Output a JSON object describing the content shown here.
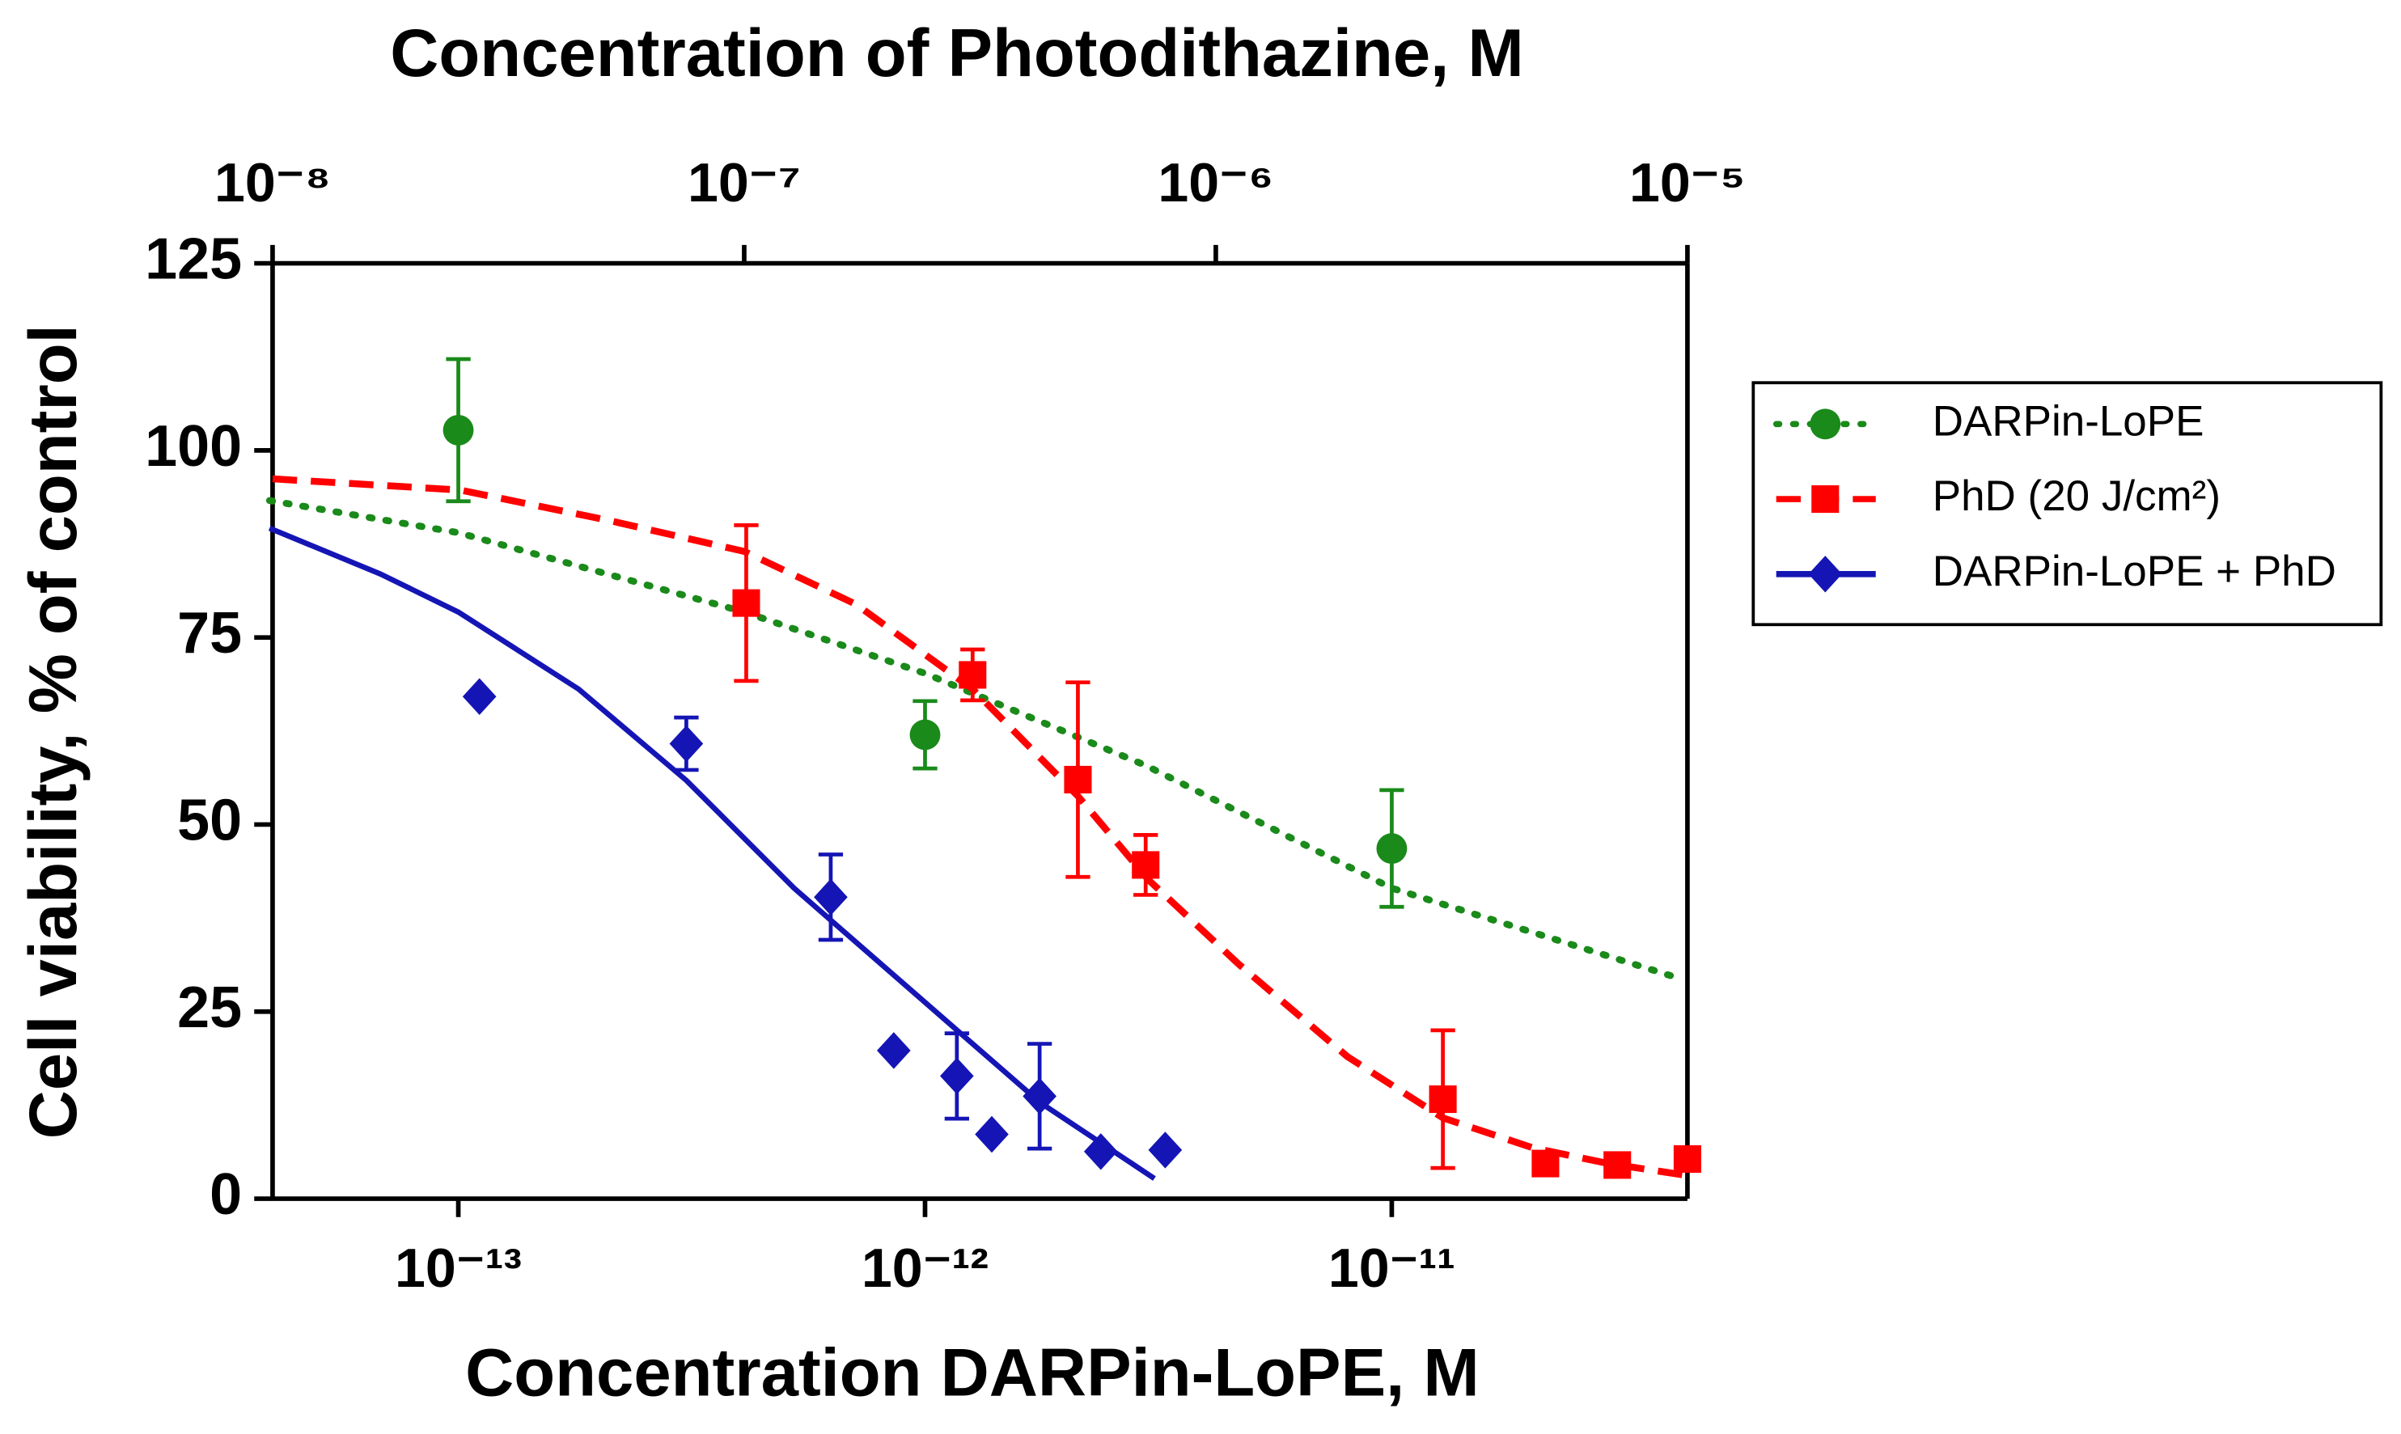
{
  "chart_data": {
    "type": "scatter",
    "title": "Concentration of Photodithazine, M",
    "x_label": "Concentration DARPin-LoPE, M",
    "y_label": "Cell viability, % of control",
    "x_scale": "log",
    "x2_scale": "log",
    "xlim": [
      4e-14,
      4.3e-11
    ],
    "xticks": [
      {
        "value": 1e-13,
        "label": "10⁻¹³"
      },
      {
        "value": 1e-12,
        "label": "10⁻¹²"
      },
      {
        "value": 1e-11,
        "label": "10⁻¹¹"
      }
    ],
    "x2lim": [
      1e-08,
      1e-05
    ],
    "x2ticks": [
      {
        "value": 1e-08,
        "label": "10⁻⁸"
      },
      {
        "value": 1e-07,
        "label": "10⁻⁷"
      },
      {
        "value": 1e-06,
        "label": "10⁻⁶"
      },
      {
        "value": 1e-05,
        "label": "10⁻⁵"
      }
    ],
    "ylim": [
      0,
      125
    ],
    "yticks": [
      0,
      25,
      50,
      75,
      100,
      125
    ],
    "legend": "right",
    "series": [
      {
        "name": "DARPin-LoPE",
        "color": "#1a8a1a",
        "marker": "circle",
        "line": "dotted",
        "x": [
          1e-13,
          1e-12,
          1e-11
        ],
        "values": [
          102.7,
          62,
          46.8
        ],
        "errors": [
          9.5,
          4.5,
          7.8
        ],
        "fit_x": [
          3.94e-14,
          1e-13,
          4.1e-13,
          1e-12,
          2.97e-12,
          1e-11,
          4.2e-11
        ],
        "fit_values": [
          93.3,
          89,
          78.4,
          70.2,
          57.9,
          41.5,
          29.3
        ]
      },
      {
        "name": "PhD (20 J/cm²)",
        "color": "#ff0000",
        "marker": "square",
        "line": "dashed",
        "axis": "x2",
        "x": [
          1.01e-07,
          3.05e-07,
          5.1e-07,
          7.1e-07,
          3.03e-06,
          5e-06,
          7.1e-06,
          1e-05
        ],
        "values": [
          79.6,
          70,
          56,
          44.6,
          13.3,
          4.7,
          4.5,
          5.3
        ],
        "errors": [
          10.4,
          3.4,
          13,
          4,
          9.2,
          null,
          null,
          null
        ],
        "fit_x": [
          1e-08,
          2.5e-08,
          5.2e-08,
          1e-07,
          1.73e-07,
          3.05e-07,
          5.1e-07,
          7.2e-07,
          1.12e-06,
          1.9e-06,
          3.03e-06,
          4.7e-06,
          6.8e-06,
          1e-05
        ],
        "fit_values": [
          96.2,
          94.7,
          90.6,
          86.5,
          79.4,
          68.1,
          53.8,
          42.6,
          31.3,
          19,
          10.8,
          6.8,
          4.7,
          3.1
        ]
      },
      {
        "name": "DARPin-LoPE + PhD",
        "color": "#1515b5",
        "marker": "diamond",
        "line": "solid",
        "x": [
          1.11e-13,
          3.08e-13,
          6.28e-13,
          8.57e-13,
          1.17e-12,
          1.39e-12,
          1.76e-12,
          2.38e-12,
          3.27e-12
        ],
        "values": [
          67.1,
          60.8,
          40.3,
          19.8,
          16.4,
          8.6,
          13.7,
          6.3,
          6.5
        ],
        "errors": [
          null,
          3.5,
          5.7,
          null,
          5.7,
          null,
          7,
          null,
          null
        ],
        "fit_x": [
          3.94e-14,
          6.8e-14,
          1e-13,
          1.81e-13,
          3.08e-13,
          5.24e-13,
          9.6e-13,
          1.76e-12,
          3.1e-12
        ],
        "fit_values": [
          89.6,
          83.5,
          78.4,
          68.1,
          55.9,
          41.5,
          27.2,
          12.9,
          2.7
        ]
      }
    ]
  }
}
